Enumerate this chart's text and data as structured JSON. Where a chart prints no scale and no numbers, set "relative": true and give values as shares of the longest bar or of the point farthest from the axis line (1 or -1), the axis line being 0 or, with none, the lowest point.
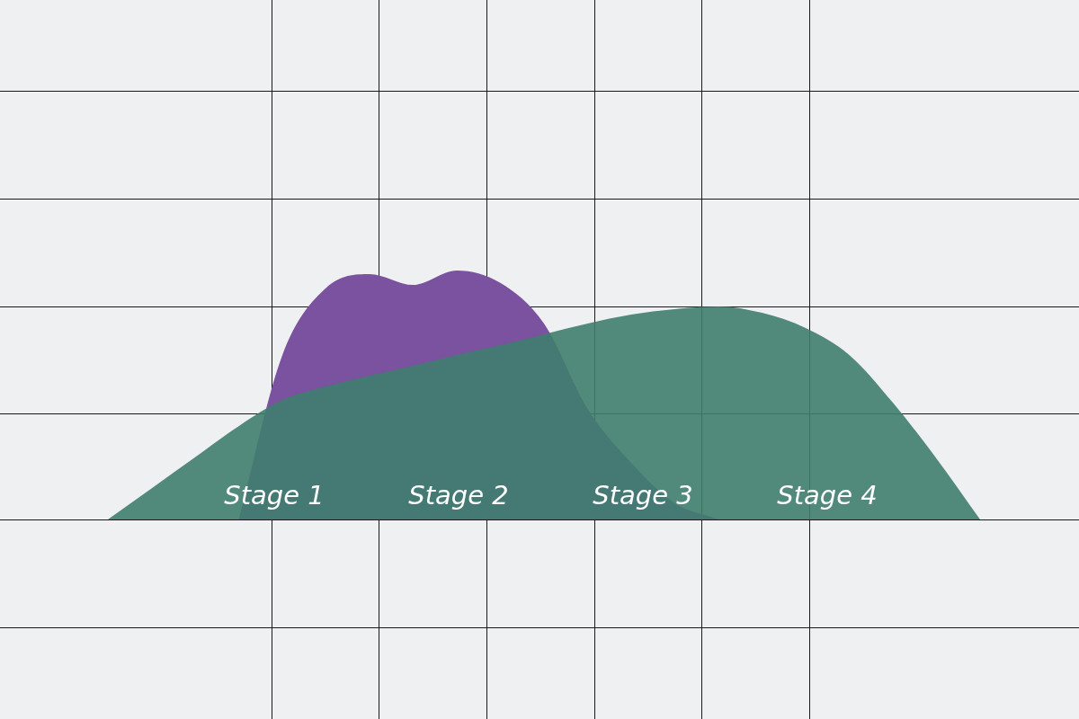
{
  "chart_data": {
    "type": "area",
    "relative": true,
    "grid": true,
    "legend": false,
    "categories": [
      null,
      null,
      null,
      null,
      null,
      null,
      null,
      null,
      null,
      null,
      null,
      null,
      null,
      null,
      null,
      null,
      null,
      null,
      null,
      null,
      null
    ],
    "series": [
      {
        "color": "#7b52a0",
        "values": [
          null,
          null,
          null,
          0,
          0.66,
          0.93,
          0.986,
          0.942,
          1,
          0.95,
          0.787,
          0.444,
          0.227,
          0.065,
          0,
          null,
          null,
          null,
          null,
          null,
          null
        ]
      },
      {
        "color": "#3f7d6e",
        "values": [
          0,
          0.125,
          0.25,
          0.375,
          0.48,
          0.534,
          0.578,
          0.617,
          0.661,
          0.7,
          0.744,
          0.787,
          0.823,
          0.845,
          0.856,
          0.83,
          0.769,
          0.661,
          0.469,
          0.245,
          0
        ]
      }
    ],
    "annotations": [
      "Stage 1",
      "Stage 2",
      "Stage 3",
      "Stage 4"
    ]
  }
}
